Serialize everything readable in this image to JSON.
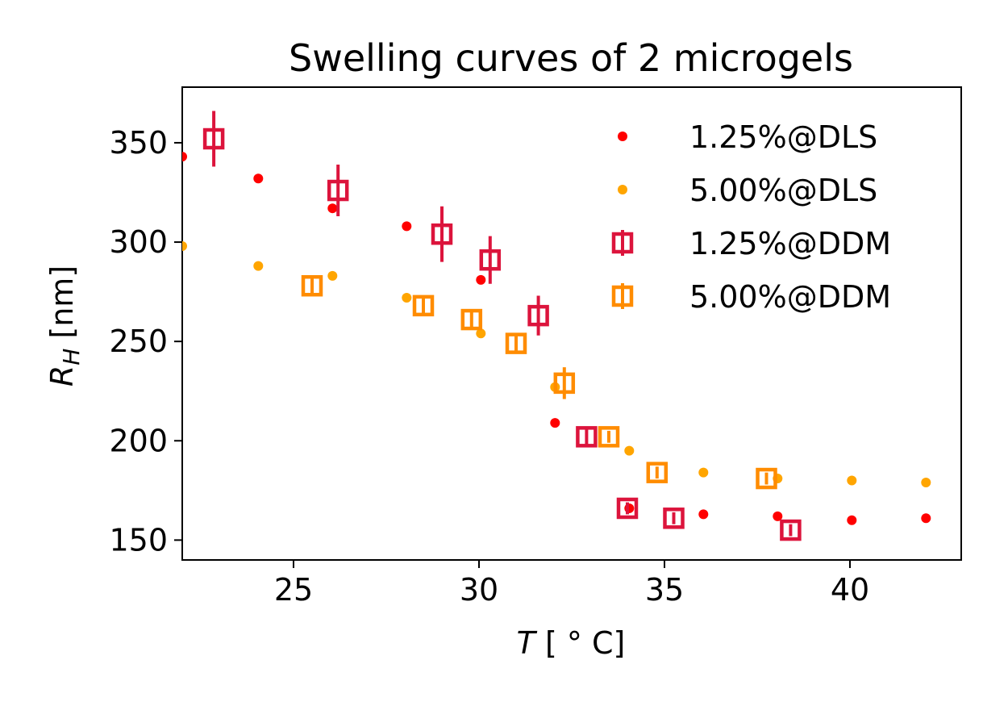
{
  "chart_data": {
    "type": "scatter",
    "title": "Swelling curves of 2 microgels",
    "xlabel_main": "T",
    "xlabel_rest": " [ ° C]",
    "ylabel_main": "R",
    "ylabel_sub": "H",
    "ylabel_rest": " [nm]",
    "xlim": [
      22,
      43
    ],
    "ylim": [
      140,
      378
    ],
    "xticks": [
      25,
      30,
      35,
      40
    ],
    "yticks": [
      150,
      200,
      250,
      300,
      350
    ],
    "grid": false,
    "legend_position": "top-right",
    "series": [
      {
        "name": "1.25%@DLS",
        "marker": "dot",
        "color": "#ff0000",
        "x": [
          22.0,
          24.05,
          26.05,
          28.05,
          30.05,
          32.05,
          34.05,
          36.05,
          38.05,
          40.05,
          42.05
        ],
        "y": [
          343,
          332,
          317,
          308,
          281,
          209,
          166,
          163,
          162,
          160,
          161
        ],
        "yerr": null
      },
      {
        "name": "5.00%@DLS",
        "marker": "dot",
        "color": "#ffa500",
        "x": [
          22.0,
          24.05,
          26.05,
          28.05,
          30.05,
          32.05,
          34.05,
          36.05,
          38.05,
          40.05,
          42.05
        ],
        "y": [
          298,
          288,
          283,
          272,
          254,
          227,
          195,
          184,
          181,
          180,
          179
        ],
        "yerr": null
      },
      {
        "name": "1.25%@DDM",
        "marker": "square",
        "color": "#dc143c",
        "x": [
          22.85,
          26.2,
          29.0,
          30.3,
          31.6,
          32.9,
          34.0,
          35.25,
          38.4
        ],
        "y": [
          352,
          326,
          304,
          291,
          263,
          202,
          166,
          161,
          155
        ],
        "yerr": [
          14,
          13,
          14,
          12,
          10,
          5,
          3,
          3,
          3
        ]
      },
      {
        "name": "5.00%@DDM",
        "marker": "square",
        "color": "#ff8c00",
        "x": [
          25.5,
          28.5,
          29.8,
          31.0,
          32.3,
          33.5,
          34.8,
          37.75
        ],
        "y": [
          278,
          268,
          261,
          249,
          229,
          202,
          184,
          181
        ],
        "yerr": [
          4,
          5,
          5,
          5,
          8,
          3,
          3,
          3
        ]
      }
    ]
  }
}
